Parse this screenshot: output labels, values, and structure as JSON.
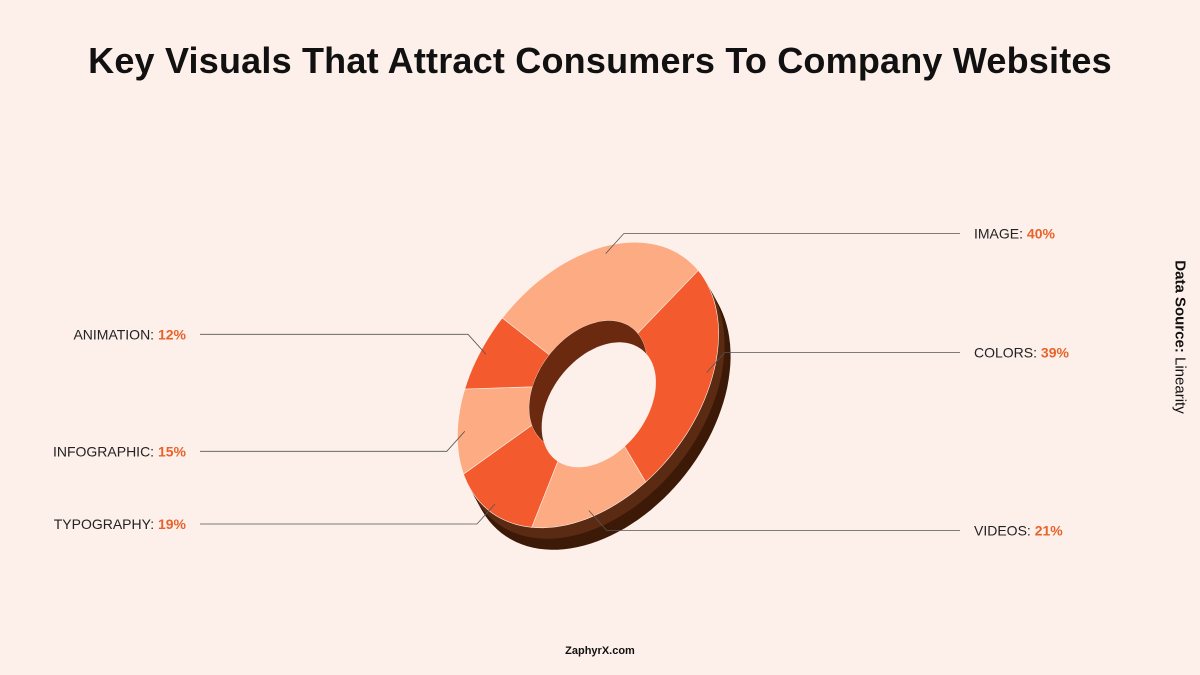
{
  "title": "Key Visuals That Attract Consumers To Company Websites",
  "source": {
    "label": "Data Source:",
    "value": "Linearity"
  },
  "footer": "ZaphyrX.com",
  "colors": {
    "dark": "#f35b2e",
    "light": "#fdab83",
    "accent": "#e8632b",
    "shadow": "#5a2a12"
  },
  "chart_data": {
    "type": "pie",
    "variant": "donut-3d",
    "series": [
      {
        "label": "IMAGE:",
        "value_label": "40%",
        "value": 40,
        "color": "light"
      },
      {
        "label": "COLORS:",
        "value_label": "39%",
        "value": 39,
        "color": "dark"
      },
      {
        "label": "VIDEOS:",
        "value_label": "21%",
        "value": 21,
        "color": "light"
      },
      {
        "label": "TYPOGRAPHY:",
        "value_label": "19%",
        "value": 19,
        "color": "dark"
      },
      {
        "label": "INFOGRAPHIC:",
        "value_label": "15%",
        "value": 15,
        "color": "light"
      },
      {
        "label": "ANIMATION:",
        "value_label": "12%",
        "value": 12,
        "color": "dark"
      }
    ]
  }
}
